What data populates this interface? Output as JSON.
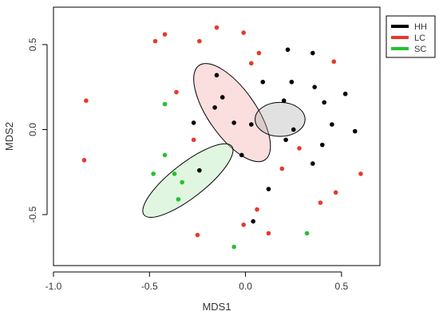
{
  "chart_data": {
    "type": "scatter",
    "xlabel": "MDS1",
    "ylabel": "MDS2",
    "xlim": [
      -1.0,
      0.7
    ],
    "ylim": [
      -0.8,
      0.72
    ],
    "x_ticks": [
      -1.0,
      -0.5,
      0.0,
      0.5
    ],
    "x_tick_labels": [
      "-1.0",
      "-0.5",
      "0.0",
      "0.5"
    ],
    "y_ticks": [
      -0.5,
      0.0,
      0.5
    ],
    "y_tick_labels": [
      "-0.5",
      "0.0",
      "0.5"
    ],
    "grid": false,
    "legend_position": "top-right outside plot",
    "series": [
      {
        "name": "HH",
        "color": "#000000",
        "points": [
          [
            0.22,
            0.47
          ],
          [
            0.35,
            0.45
          ],
          [
            -0.15,
            0.32
          ],
          [
            0.09,
            0.28
          ],
          [
            0.24,
            0.28
          ],
          [
            0.36,
            0.25
          ],
          [
            0.52,
            0.21
          ],
          [
            -0.12,
            0.19
          ],
          [
            -0.16,
            0.13
          ],
          [
            0.2,
            0.17
          ],
          [
            0.41,
            0.16
          ],
          [
            -0.27,
            0.04
          ],
          [
            -0.06,
            0.04
          ],
          [
            0.03,
            0.03
          ],
          [
            0.45,
            0.03
          ],
          [
            0.25,
            0.0
          ],
          [
            0.57,
            -0.01
          ],
          [
            0.21,
            -0.06
          ],
          [
            0.4,
            -0.09
          ],
          [
            -0.02,
            -0.15
          ],
          [
            0.35,
            -0.2
          ],
          [
            -0.24,
            -0.24
          ],
          [
            0.12,
            -0.35
          ],
          [
            0.04,
            -0.54
          ]
        ]
      },
      {
        "name": "LC",
        "color": "#e8392a",
        "points": [
          [
            -0.15,
            0.6
          ],
          [
            -0.42,
            0.56
          ],
          [
            -0.01,
            0.57
          ],
          [
            -0.47,
            0.52
          ],
          [
            -0.24,
            0.52
          ],
          [
            0.07,
            0.45
          ],
          [
            0.03,
            0.39
          ],
          [
            0.46,
            0.4
          ],
          [
            -0.36,
            0.22
          ],
          [
            -0.83,
            0.17
          ],
          [
            -0.27,
            -0.06
          ],
          [
            0.28,
            -0.11
          ],
          [
            -0.84,
            -0.18
          ],
          [
            0.19,
            -0.23
          ],
          [
            0.6,
            -0.26
          ],
          [
            0.47,
            -0.37
          ],
          [
            0.39,
            -0.43
          ],
          [
            0.06,
            -0.47
          ],
          [
            -0.25,
            -0.62
          ],
          [
            0.12,
            -0.61
          ],
          [
            -0.01,
            -0.56
          ]
        ]
      },
      {
        "name": "SC",
        "color": "#22c22e",
        "points": [
          [
            -0.42,
            0.15
          ],
          [
            -0.42,
            -0.15
          ],
          [
            -0.48,
            -0.26
          ],
          [
            -0.37,
            -0.26
          ],
          [
            -0.33,
            -0.31
          ],
          [
            -0.35,
            -0.41
          ],
          [
            0.32,
            -0.61
          ],
          [
            -0.06,
            -0.69
          ]
        ]
      }
    ],
    "ellipses": [
      {
        "series": "LC",
        "center": [
          -0.07,
          0.1
        ],
        "half_axes": [
          0.3,
          0.14
        ],
        "angle_deg": -55,
        "fill": "rgba(244,160,160,0.35)",
        "stroke": "#000000"
      },
      {
        "series": "HH",
        "center": [
          0.18,
          0.06
        ],
        "half_axes": [
          0.13,
          0.1
        ],
        "angle_deg": 0,
        "fill": "rgba(170,170,170,0.35)",
        "stroke": "#000000"
      },
      {
        "series": "SC",
        "center": [
          -0.3,
          -0.3
        ],
        "half_axes": [
          0.29,
          0.1
        ],
        "angle_deg": 38,
        "fill": "rgba(170,230,170,0.35)",
        "stroke": "#000000"
      }
    ]
  }
}
